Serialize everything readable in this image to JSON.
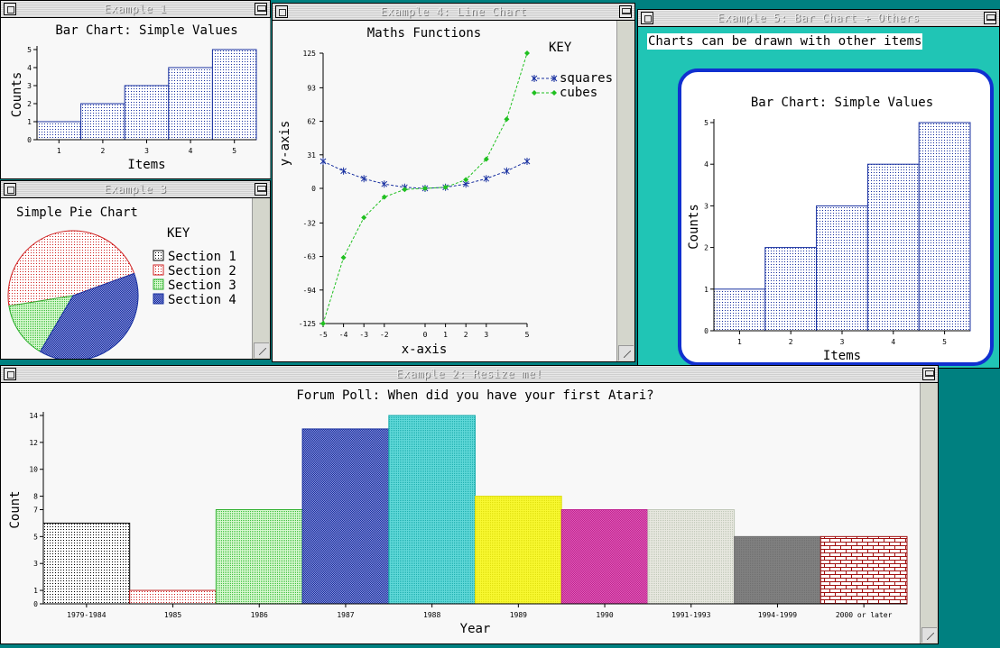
{
  "windows": {
    "w1": {
      "title": "Example 1"
    },
    "w3": {
      "title": "Example 3"
    },
    "w4": {
      "title": "Example 4: Line Chart"
    },
    "w5": {
      "title": "Example 5: Bar Chart + Others",
      "banner": "Charts can be drawn with other items"
    },
    "w2": {
      "title": "Example 2: Resize me!"
    }
  },
  "colors": {
    "desktop": "#008080",
    "teal_panel": "#20c5b5",
    "blue": "#1830a0",
    "green": "#20c020"
  },
  "chart_data": [
    {
      "id": "ex1",
      "type": "bar",
      "title": "Bar Chart: Simple Values",
      "xlabel": "Items",
      "ylabel": "Counts",
      "categories": [
        "1",
        "2",
        "3",
        "4",
        "5"
      ],
      "values": [
        1,
        2,
        3,
        4,
        5
      ],
      "ylim": [
        0,
        5
      ],
      "yticks": [
        "0",
        "1",
        "2",
        "3",
        "4",
        "5"
      ]
    },
    {
      "id": "ex3",
      "type": "pie",
      "title": "Simple Pie Chart",
      "legend_title": "KEY",
      "labels": [
        "Section 1",
        "Section 2",
        "Section 3",
        "Section 4"
      ],
      "values": [
        0,
        47,
        14,
        39
      ],
      "legend_placement": "right"
    },
    {
      "id": "ex4",
      "type": "line",
      "title": "Maths Functions",
      "xlabel": "x-axis",
      "ylabel": "y-axis",
      "legend_title": "KEY",
      "x": [
        -5,
        -4,
        -3,
        -2,
        -1,
        0,
        1,
        2,
        3,
        4,
        5
      ],
      "xticks": [
        "-5",
        "-4",
        "-3",
        "-2",
        "0",
        "1",
        "2",
        "3",
        "5"
      ],
      "yticks": [
        "125",
        "93",
        "62",
        "31",
        "0",
        "-32",
        "-63",
        "-94",
        "-125"
      ],
      "ylim": [
        -125,
        125
      ],
      "series": [
        {
          "name": "squares",
          "values": [
            25,
            16,
            9,
            4,
            1,
            0,
            1,
            4,
            9,
            16,
            25
          ]
        },
        {
          "name": "cubes",
          "values": [
            -125,
            -64,
            -27,
            -8,
            -1,
            0,
            1,
            8,
            27,
            64,
            125
          ]
        }
      ]
    },
    {
      "id": "ex5",
      "type": "bar",
      "title": "Bar Chart: Simple Values",
      "xlabel": "Items",
      "ylabel": "Counts",
      "categories": [
        "1",
        "2",
        "3",
        "4",
        "5"
      ],
      "values": [
        1,
        2,
        3,
        4,
        5
      ],
      "ylim": [
        0,
        5
      ],
      "yticks": [
        "0",
        "1",
        "2",
        "3",
        "4",
        "5"
      ]
    },
    {
      "id": "ex2",
      "type": "bar",
      "title": "Forum Poll: When did you have your first Atari?",
      "xlabel": "Year",
      "ylabel": "Count",
      "categories": [
        "1979-1984",
        "1985",
        "1986",
        "1987",
        "1988",
        "1989",
        "1990",
        "1991-1993",
        "1994-1999",
        "2000 or later"
      ],
      "values": [
        6,
        1,
        7,
        13,
        14,
        8,
        7,
        7,
        5,
        5
      ],
      "ylim": [
        0,
        14
      ],
      "yticks": [
        "0",
        "1",
        "3",
        "5",
        "7",
        "8",
        "10",
        "12",
        "14"
      ]
    }
  ]
}
